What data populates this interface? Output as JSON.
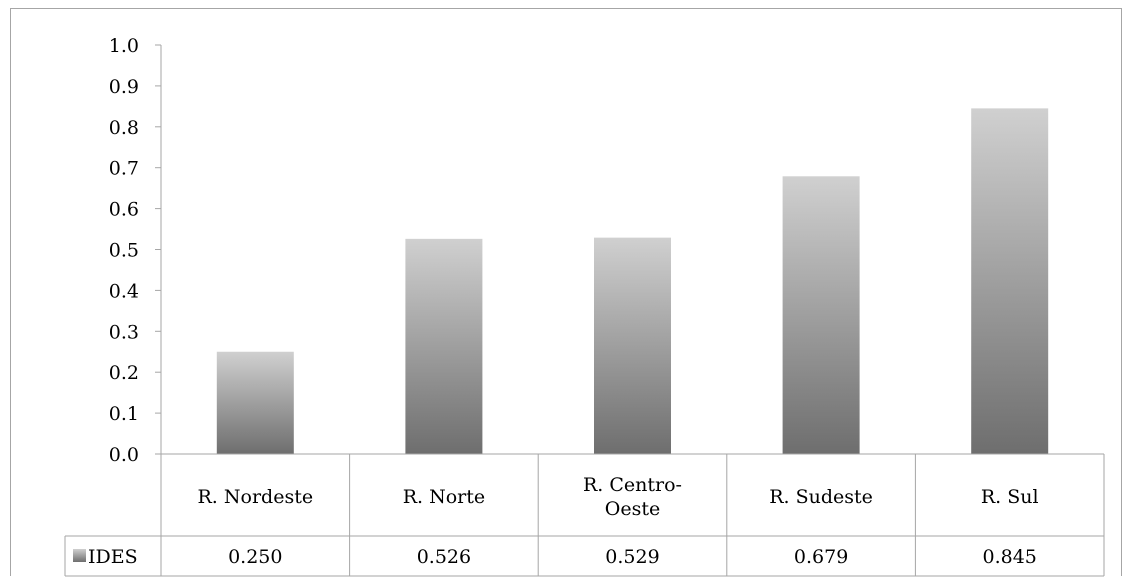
{
  "chart_data": {
    "type": "bar",
    "categories": [
      "R. Nordeste",
      "R. Norte",
      "R. Centro-Oeste",
      "R. Sudeste",
      "R. Sul"
    ],
    "category_lines": [
      [
        "R. Nordeste"
      ],
      [
        "R. Norte"
      ],
      [
        "R. Centro-",
        "Oeste"
      ],
      [
        "R. Sudeste"
      ],
      [
        "R. Sul"
      ]
    ],
    "series": [
      {
        "name": "IDES",
        "values": [
          0.25,
          0.526,
          0.529,
          0.679,
          0.845
        ],
        "value_labels": [
          "0.250",
          "0.526",
          "0.529",
          "0.679",
          "0.845"
        ]
      }
    ],
    "ylim": [
      0,
      1.0
    ],
    "yticks": [
      "0.0",
      "0.1",
      "0.2",
      "0.3",
      "0.4",
      "0.5",
      "0.6",
      "0.7",
      "0.8",
      "0.9",
      "1.0"
    ],
    "grid": false,
    "legend": "data-table",
    "colors": {
      "bar_top": "#d0d0d0",
      "bar_bottom": "#6e6e6e",
      "axis": "#a6a6a6"
    }
  }
}
